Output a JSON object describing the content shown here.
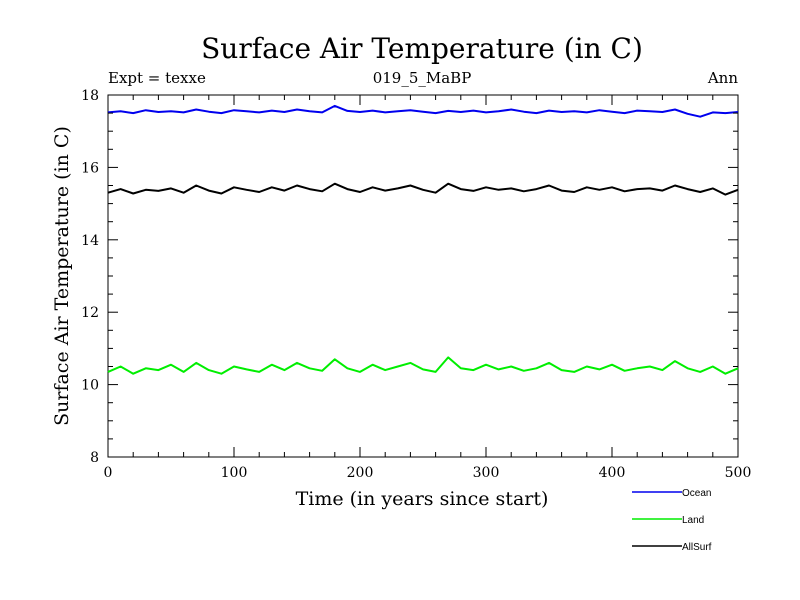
{
  "chart_data": {
    "type": "line",
    "title": "Surface Air Temperature (in C)",
    "subtitle": "019_5_MaBP",
    "annotation_left": "Expt = texxe",
    "annotation_right": "Ann",
    "xlabel": "Time (in years since start)",
    "ylabel": "Surface Air Temperature (in C)",
    "xlim": [
      0,
      500
    ],
    "ylim": [
      8,
      18
    ],
    "xticks": [
      0,
      100,
      200,
      300,
      400,
      500
    ],
    "yticks": [
      8,
      10,
      12,
      14,
      16,
      18
    ],
    "grid": false,
    "legend_position": "bottom-right",
    "series": [
      {
        "name": "Ocean",
        "color": "#0000ee",
        "sample_interval_years": 10,
        "values": [
          17.52,
          17.55,
          17.5,
          17.58,
          17.53,
          17.55,
          17.52,
          17.6,
          17.54,
          17.5,
          17.58,
          17.55,
          17.52,
          17.57,
          17.53,
          17.6,
          17.55,
          17.52,
          17.7,
          17.56,
          17.53,
          17.57,
          17.52,
          17.55,
          17.58,
          17.54,
          17.5,
          17.56,
          17.53,
          17.57,
          17.52,
          17.55,
          17.6,
          17.54,
          17.5,
          17.57,
          17.53,
          17.55,
          17.52,
          17.58,
          17.54,
          17.5,
          17.57,
          17.55,
          17.53,
          17.6,
          17.48,
          17.4,
          17.52,
          17.5,
          17.53
        ]
      },
      {
        "name": "Land",
        "color": "#00ee00",
        "sample_interval_years": 10,
        "values": [
          10.35,
          10.5,
          10.3,
          10.45,
          10.4,
          10.55,
          10.35,
          10.6,
          10.4,
          10.3,
          10.5,
          10.42,
          10.35,
          10.55,
          10.4,
          10.6,
          10.45,
          10.38,
          10.7,
          10.45,
          10.35,
          10.55,
          10.4,
          10.5,
          10.6,
          10.42,
          10.35,
          10.75,
          10.45,
          10.4,
          10.55,
          10.42,
          10.5,
          10.38,
          10.45,
          10.6,
          10.4,
          10.35,
          10.5,
          10.42,
          10.55,
          10.38,
          10.45,
          10.5,
          10.4,
          10.65,
          10.45,
          10.35,
          10.5,
          10.3,
          10.45
        ]
      },
      {
        "name": "AllSurf",
        "color": "#000000",
        "sample_interval_years": 10,
        "values": [
          15.3,
          15.4,
          15.28,
          15.38,
          15.35,
          15.42,
          15.3,
          15.5,
          15.36,
          15.28,
          15.45,
          15.38,
          15.32,
          15.45,
          15.36,
          15.5,
          15.4,
          15.34,
          15.55,
          15.4,
          15.32,
          15.45,
          15.36,
          15.42,
          15.5,
          15.38,
          15.3,
          15.55,
          15.4,
          15.35,
          15.45,
          15.38,
          15.42,
          15.34,
          15.4,
          15.5,
          15.36,
          15.32,
          15.45,
          15.38,
          15.45,
          15.34,
          15.4,
          15.42,
          15.36,
          15.5,
          15.4,
          15.32,
          15.42,
          15.25,
          15.38
        ]
      }
    ]
  }
}
